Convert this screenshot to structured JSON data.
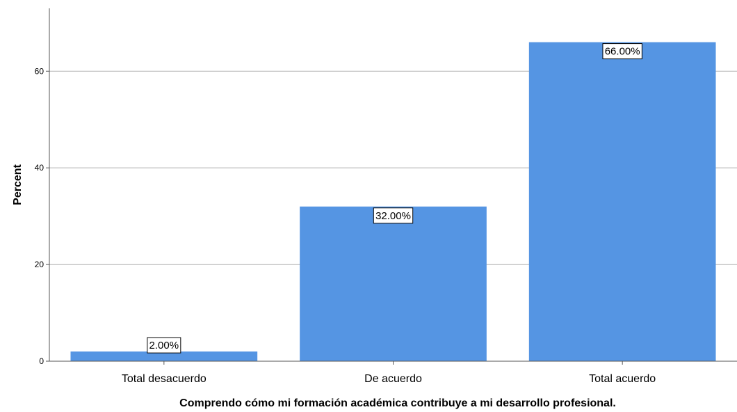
{
  "colors": {
    "bar": "#5595e3",
    "grid": "#b8b8b8",
    "axis": "#555555",
    "label_box_border": "#000000",
    "label_box_fill": "#ffffff"
  },
  "chart_data": {
    "type": "bar",
    "categories": [
      "Total desacuerdo",
      "De acuerdo",
      "Total acuerdo"
    ],
    "values": [
      2,
      32,
      66
    ],
    "data_labels": [
      "2.00%",
      "32.00%",
      "66.00%"
    ],
    "xlabel": "Comprendo cómo mi formación académica contribuye a mi desarrollo profesional.",
    "ylabel": "Percent",
    "yticks": [
      0,
      20,
      40,
      60
    ],
    "ylim": [
      0,
      73
    ],
    "grid": true,
    "legend": "none"
  }
}
